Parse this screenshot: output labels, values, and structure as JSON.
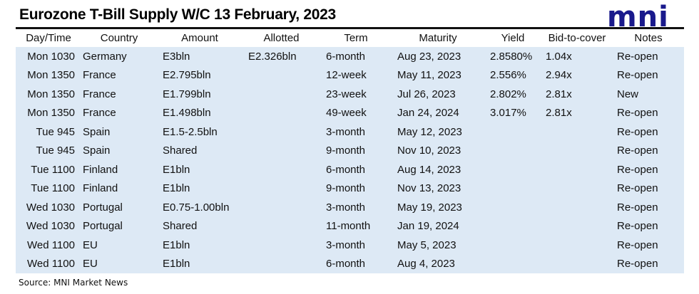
{
  "title": "Eurozone T-Bill Supply W/C 13 February, 2023",
  "logo": "mni",
  "columns": [
    "Day/Time",
    "Country",
    "Amount",
    "Allotted",
    "Term",
    "Maturity",
    "Yield",
    "Bid-to-cover",
    "Notes"
  ],
  "rows": [
    [
      "Mon 1030",
      "Germany",
      "E3bln",
      "E2.326bln",
      "6-month",
      "Aug 23, 2023",
      "2.8580%",
      "1.04x",
      "Re-open"
    ],
    [
      "Mon 1350",
      "France",
      "E2.795bln",
      "",
      "12-week",
      "May 11, 2023",
      "2.556%",
      "2.94x",
      "Re-open"
    ],
    [
      "Mon 1350",
      "France",
      "E1.799bln",
      "",
      "23-week",
      "Jul 26, 2023",
      "2.802%",
      "2.81x",
      "New"
    ],
    [
      "Mon 1350",
      "France",
      "E1.498bln",
      "",
      "49-week",
      "Jan 24, 2024",
      "3.017%",
      "2.81x",
      "Re-open"
    ],
    [
      "Tue 945",
      "Spain",
      "E1.5-2.5bln",
      "",
      "3-month",
      "May 12, 2023",
      "",
      "",
      "Re-open"
    ],
    [
      "Tue 945",
      "Spain",
      "Shared",
      "",
      "9-month",
      "Nov 10, 2023",
      "",
      "",
      "Re-open"
    ],
    [
      "Tue 1100",
      "Finland",
      "E1bln",
      "",
      "6-month",
      "Aug 14, 2023",
      "",
      "",
      "Re-open"
    ],
    [
      "Tue 1100",
      "Finland",
      "E1bln",
      "",
      "9-month",
      "Nov 13, 2023",
      "",
      "",
      "Re-open"
    ],
    [
      "Wed 1030",
      "Portugal",
      "E0.75-1.00bln",
      "",
      "3-month",
      "May 19, 2023",
      "",
      "",
      "Re-open"
    ],
    [
      "Wed 1030",
      "Portugal",
      "Shared",
      "",
      "11-month",
      "Jan 19, 2024",
      "",
      "",
      "Re-open"
    ],
    [
      "Wed 1100",
      "EU",
      "E1bln",
      "",
      "3-month",
      "May 5, 2023",
      "",
      "",
      "Re-open"
    ],
    [
      "Wed 1100",
      "EU",
      "E1bln",
      "",
      "6-month",
      "Aug 4, 2023",
      "",
      "",
      "Re-open"
    ]
  ],
  "source": "Source: MNI Market News",
  "colors": {
    "row_background": "#dde9f5",
    "logo": "#1a1a8c"
  }
}
